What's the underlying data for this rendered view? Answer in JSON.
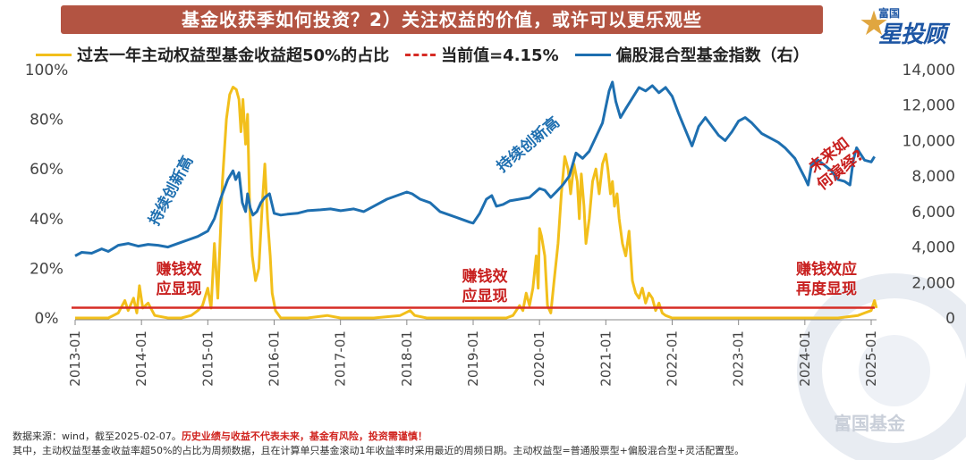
{
  "title": "基金收获季如何投资？2）关注权益的价值，或许可以更乐观些",
  "brand": {
    "top": "富国",
    "name": "星投顾"
  },
  "watermark": "富国基金",
  "legend": {
    "series1": "过去一年主动权益型基金收益超50%的占比",
    "series2": "当前值=4.15%",
    "series3": "偏股混合型基金指数（右）"
  },
  "annotations": {
    "red": [
      [
        "赚钱效",
        "应显现"
      ],
      [
        "赚钱效",
        "应显现"
      ],
      [
        "赚钱效应",
        "再度显现"
      ],
      [
        "未来如",
        "何演绎?"
      ]
    ],
    "blue": [
      "持续创新高",
      "持续创新高"
    ]
  },
  "footer": {
    "line1_a": "数据来源：wind，截至2025-02-07。",
    "line1_b": "历史业绩与收益不代表未来，基金有风险，投资需谨慎！",
    "line2": "其中，主动权益型基金收益率超50%的占比为周频数据，且在计算单只基金滚动1年收益率时采用最近的周频日期。主动权益型=普通股票型+偏股混合型+灵活配置型。"
  },
  "colors": {
    "yellow": "#f2bf1b",
    "red": "#d62c25",
    "blue": "#1e6fb0",
    "banner": "#b35442"
  },
  "chart_data": {
    "type": "line",
    "x_ticks": [
      "2013-01",
      "2014-01",
      "2015-01",
      "2016-01",
      "2017-01",
      "2018-01",
      "2019-01",
      "2020-01",
      "2021-01",
      "2022-01",
      "2023-01",
      "2024-01",
      "2025-01"
    ],
    "y_left": {
      "ticks": [
        "0%",
        "20%",
        "40%",
        "60%",
        "80%",
        "100%"
      ],
      "range": [
        0,
        100
      ]
    },
    "y_right": {
      "ticks": [
        "0",
        "2,000",
        "4,000",
        "6,000",
        "8,000",
        "10,000",
        "12,000",
        "14,000"
      ],
      "range": [
        0,
        14000
      ]
    },
    "reference_line": {
      "name": "当前值=4.15%",
      "value": 4.15
    },
    "series": [
      {
        "name": "过去一年主动权益型基金收益超50%的占比",
        "axis": "left",
        "points": [
          [
            2013.0,
            0
          ],
          [
            2013.5,
            0
          ],
          [
            2013.65,
            2
          ],
          [
            2013.75,
            7
          ],
          [
            2013.8,
            3
          ],
          [
            2013.88,
            8
          ],
          [
            2013.93,
            2
          ],
          [
            2013.97,
            13
          ],
          [
            2014.02,
            4
          ],
          [
            2014.1,
            6
          ],
          [
            2014.2,
            1
          ],
          [
            2014.4,
            0
          ],
          [
            2014.6,
            0
          ],
          [
            2014.75,
            1
          ],
          [
            2014.85,
            3
          ],
          [
            2014.92,
            5
          ],
          [
            2015.0,
            12
          ],
          [
            2015.05,
            4
          ],
          [
            2015.1,
            30
          ],
          [
            2015.15,
            8
          ],
          [
            2015.22,
            55
          ],
          [
            2015.28,
            80
          ],
          [
            2015.33,
            90
          ],
          [
            2015.38,
            93
          ],
          [
            2015.43,
            92
          ],
          [
            2015.47,
            88
          ],
          [
            2015.5,
            75
          ],
          [
            2015.53,
            88
          ],
          [
            2015.57,
            70
          ],
          [
            2015.6,
            82
          ],
          [
            2015.63,
            45
          ],
          [
            2015.67,
            25
          ],
          [
            2015.72,
            15
          ],
          [
            2015.77,
            20
          ],
          [
            2015.82,
            45
          ],
          [
            2015.86,
            62
          ],
          [
            2015.9,
            40
          ],
          [
            2015.94,
            25
          ],
          [
            2015.97,
            10
          ],
          [
            2016.02,
            3
          ],
          [
            2016.1,
            0
          ],
          [
            2016.5,
            0
          ],
          [
            2016.8,
            1
          ],
          [
            2017.0,
            0
          ],
          [
            2017.5,
            0
          ],
          [
            2017.9,
            1
          ],
          [
            2018.05,
            3
          ],
          [
            2018.12,
            1
          ],
          [
            2018.3,
            0
          ],
          [
            2018.8,
            0
          ],
          [
            2019.2,
            0
          ],
          [
            2019.5,
            0
          ],
          [
            2019.6,
            1
          ],
          [
            2019.7,
            5
          ],
          [
            2019.75,
            3
          ],
          [
            2019.8,
            10
          ],
          [
            2019.85,
            5
          ],
          [
            2019.9,
            12
          ],
          [
            2019.95,
            25
          ],
          [
            2019.98,
            12
          ],
          [
            2020.0,
            36
          ],
          [
            2020.03,
            33
          ],
          [
            2020.08,
            25
          ],
          [
            2020.12,
            5
          ],
          [
            2020.17,
            2
          ],
          [
            2020.22,
            15
          ],
          [
            2020.28,
            30
          ],
          [
            2020.33,
            50
          ],
          [
            2020.38,
            65
          ],
          [
            2020.43,
            60
          ],
          [
            2020.47,
            50
          ],
          [
            2020.52,
            62
          ],
          [
            2020.57,
            55
          ],
          [
            2020.6,
            40
          ],
          [
            2020.63,
            58
          ],
          [
            2020.67,
            45
          ],
          [
            2020.7,
            30
          ],
          [
            2020.75,
            40
          ],
          [
            2020.8,
            55
          ],
          [
            2020.85,
            60
          ],
          [
            2020.9,
            50
          ],
          [
            2020.95,
            62
          ],
          [
            2021.0,
            66
          ],
          [
            2021.03,
            60
          ],
          [
            2021.07,
            50
          ],
          [
            2021.1,
            55
          ],
          [
            2021.13,
            45
          ],
          [
            2021.17,
            50
          ],
          [
            2021.2,
            40
          ],
          [
            2021.25,
            30
          ],
          [
            2021.3,
            25
          ],
          [
            2021.35,
            35
          ],
          [
            2021.4,
            15
          ],
          [
            2021.45,
            10
          ],
          [
            2021.5,
            8
          ],
          [
            2021.55,
            12
          ],
          [
            2021.6,
            6
          ],
          [
            2021.65,
            10
          ],
          [
            2021.7,
            8
          ],
          [
            2021.75,
            3
          ],
          [
            2021.8,
            6
          ],
          [
            2021.85,
            2
          ],
          [
            2021.9,
            1
          ],
          [
            2022.0,
            0
          ],
          [
            2022.5,
            0
          ],
          [
            2023.0,
            0
          ],
          [
            2023.5,
            0
          ],
          [
            2024.0,
            0
          ],
          [
            2024.5,
            0
          ],
          [
            2024.8,
            1
          ],
          [
            2024.9,
            2
          ],
          [
            2025.0,
            3
          ],
          [
            2025.05,
            7
          ],
          [
            2025.08,
            4
          ]
        ]
      },
      {
        "name": "偏股混合型基金指数（右）",
        "axis": "right",
        "points": [
          [
            2013.0,
            3500
          ],
          [
            2013.1,
            3700
          ],
          [
            2013.25,
            3650
          ],
          [
            2013.4,
            3900
          ],
          [
            2013.5,
            3750
          ],
          [
            2013.65,
            4100
          ],
          [
            2013.8,
            4200
          ],
          [
            2013.95,
            4050
          ],
          [
            2014.1,
            4150
          ],
          [
            2014.25,
            4100
          ],
          [
            2014.4,
            4000
          ],
          [
            2014.55,
            4200
          ],
          [
            2014.7,
            4400
          ],
          [
            2014.85,
            4600
          ],
          [
            2015.0,
            4900
          ],
          [
            2015.1,
            5600
          ],
          [
            2015.2,
            6800
          ],
          [
            2015.3,
            7800
          ],
          [
            2015.38,
            8300
          ],
          [
            2015.42,
            7800
          ],
          [
            2015.47,
            8200
          ],
          [
            2015.52,
            6500
          ],
          [
            2015.57,
            6000
          ],
          [
            2015.6,
            7000
          ],
          [
            2015.64,
            6200
          ],
          [
            2015.68,
            5800
          ],
          [
            2015.74,
            6000
          ],
          [
            2015.8,
            6500
          ],
          [
            2015.86,
            6800
          ],
          [
            2015.93,
            7000
          ],
          [
            2016.0,
            5900
          ],
          [
            2016.1,
            5800
          ],
          [
            2016.2,
            5850
          ],
          [
            2016.35,
            5900
          ],
          [
            2016.5,
            6050
          ],
          [
            2016.7,
            6100
          ],
          [
            2016.85,
            6150
          ],
          [
            2017.0,
            6050
          ],
          [
            2017.2,
            6150
          ],
          [
            2017.35,
            6000
          ],
          [
            2017.5,
            6300
          ],
          [
            2017.7,
            6700
          ],
          [
            2017.85,
            6900
          ],
          [
            2018.0,
            7100
          ],
          [
            2018.08,
            7000
          ],
          [
            2018.2,
            6700
          ],
          [
            2018.35,
            6500
          ],
          [
            2018.5,
            6000
          ],
          [
            2018.65,
            5800
          ],
          [
            2018.8,
            5600
          ],
          [
            2018.95,
            5400
          ],
          [
            2019.0,
            5350
          ],
          [
            2019.1,
            5900
          ],
          [
            2019.2,
            6700
          ],
          [
            2019.28,
            6900
          ],
          [
            2019.35,
            6300
          ],
          [
            2019.45,
            6400
          ],
          [
            2019.55,
            6600
          ],
          [
            2019.7,
            6700
          ],
          [
            2019.85,
            6800
          ],
          [
            2020.0,
            7300
          ],
          [
            2020.08,
            7200
          ],
          [
            2020.17,
            6800
          ],
          [
            2020.25,
            7100
          ],
          [
            2020.35,
            7500
          ],
          [
            2020.45,
            8000
          ],
          [
            2020.55,
            9300
          ],
          [
            2020.65,
            9000
          ],
          [
            2020.75,
            9400
          ],
          [
            2020.85,
            10200
          ],
          [
            2020.95,
            11000
          ],
          [
            2021.05,
            12800
          ],
          [
            2021.1,
            13300
          ],
          [
            2021.15,
            12200
          ],
          [
            2021.22,
            11300
          ],
          [
            2021.3,
            11800
          ],
          [
            2021.4,
            12400
          ],
          [
            2021.5,
            13000
          ],
          [
            2021.6,
            12800
          ],
          [
            2021.7,
            13100
          ],
          [
            2021.8,
            12700
          ],
          [
            2021.9,
            13000
          ],
          [
            2022.0,
            12500
          ],
          [
            2022.1,
            11500
          ],
          [
            2022.2,
            10600
          ],
          [
            2022.3,
            9700
          ],
          [
            2022.4,
            10800
          ],
          [
            2022.5,
            11300
          ],
          [
            2022.6,
            10800
          ],
          [
            2022.7,
            10300
          ],
          [
            2022.8,
            10000
          ],
          [
            2022.9,
            10500
          ],
          [
            2023.0,
            11100
          ],
          [
            2023.1,
            11300
          ],
          [
            2023.2,
            11000
          ],
          [
            2023.35,
            10400
          ],
          [
            2023.5,
            10100
          ],
          [
            2023.6,
            9900
          ],
          [
            2023.7,
            9600
          ],
          [
            2023.85,
            9000
          ],
          [
            2024.0,
            7900
          ],
          [
            2024.05,
            7500
          ],
          [
            2024.1,
            8600
          ],
          [
            2024.2,
            8900
          ],
          [
            2024.3,
            8600
          ],
          [
            2024.4,
            8300
          ],
          [
            2024.5,
            7800
          ],
          [
            2024.6,
            7700
          ],
          [
            2024.68,
            7500
          ],
          [
            2024.73,
            8900
          ],
          [
            2024.78,
            9600
          ],
          [
            2024.83,
            9300
          ],
          [
            2024.9,
            8900
          ],
          [
            2025.0,
            8800
          ],
          [
            2025.05,
            9100
          ]
        ]
      }
    ]
  }
}
